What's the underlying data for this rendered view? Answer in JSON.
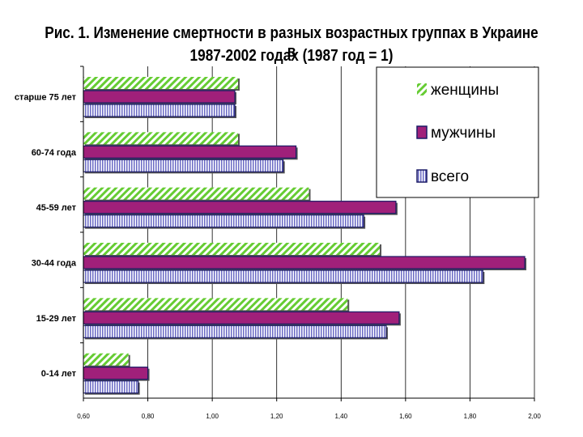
{
  "chart_data": {
    "type": "bar",
    "orientation": "horizontal",
    "title_line1": "Рис. 1. Изменение смертности в разных возрастных группах в Украине в",
    "title_line2": "1987-2002 годах (1987 год = 1)",
    "categories": [
      "старше 75 лет",
      "60-74 года",
      "45-59 лет",
      "30-44 года",
      "15-29 лет",
      "0-14 лет"
    ],
    "series": [
      {
        "name": "женщины",
        "values": [
          1.08,
          1.08,
          1.3,
          1.52,
          1.42,
          0.74
        ]
      },
      {
        "name": "мужчины",
        "values": [
          1.07,
          1.26,
          1.57,
          1.97,
          1.58,
          0.8
        ]
      },
      {
        "name": "всего",
        "values": [
          1.07,
          1.22,
          1.47,
          1.84,
          1.54,
          0.77
        ]
      }
    ],
    "xlim": [
      0.6,
      2.0
    ],
    "xticks": [
      "0,60",
      "0,80",
      "1,00",
      "1,20",
      "1,40",
      "1,60",
      "1,80",
      "2,00"
    ],
    "grid": true,
    "legend_position": "top-right"
  },
  "colors": {
    "women_stripe": "#66cc33",
    "men_fill": "#a0207a",
    "total_stripe": "#6a6ac4",
    "bar_outline": "#1a1a66",
    "grid": "#000000"
  }
}
